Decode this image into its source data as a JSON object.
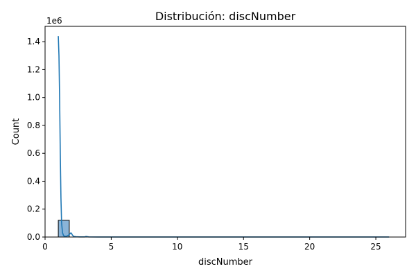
{
  "chart_data": {
    "type": "bar",
    "title": "Distribución: discNumber",
    "xlabel": "discNumber",
    "ylabel": "Count",
    "y_offset_text": "1e6",
    "xlim": [
      0,
      27.25
    ],
    "ylim": [
      0,
      1.51
    ],
    "x_ticks": [
      0,
      5,
      10,
      15,
      20,
      25
    ],
    "x_tick_labels": [
      "0",
      "5",
      "10",
      "15",
      "20",
      "25"
    ],
    "y_ticks": [
      0.0,
      0.2,
      0.4,
      0.6,
      0.8,
      1.0,
      1.2,
      1.4
    ],
    "y_tick_labels": [
      "0.0",
      "0.2",
      "0.4",
      "0.6",
      "0.8",
      "1.0",
      "1.2",
      "1.4"
    ],
    "bins": [
      {
        "x0": 1.0,
        "x1": 1.83,
        "count": 0.12
      }
    ],
    "kde": {
      "x": [
        1.0,
        1.05,
        1.1,
        1.15,
        1.2,
        1.25,
        1.32,
        1.4,
        1.5,
        1.62,
        1.75,
        1.88,
        1.95,
        2.0,
        2.05,
        2.12,
        2.2,
        2.35,
        2.6,
        3.0,
        3.1,
        3.3,
        4.0,
        6.0,
        10.0,
        15.0,
        20.0,
        26.0
      ],
      "y": [
        1.44,
        1.3,
        1.0,
        0.6,
        0.28,
        0.1,
        0.03,
        0.01,
        0.005,
        0.006,
        0.012,
        0.022,
        0.03,
        0.026,
        0.016,
        0.008,
        0.004,
        0.002,
        0.001,
        0.001,
        0.004,
        0.001,
        0.0005,
        0.0003,
        0.0002,
        0.0002,
        0.0002,
        0.0002
      ]
    },
    "colors": {
      "bar_fill": "#8ab4d8",
      "bar_edge": "#000000",
      "kde_line": "#1f77b4",
      "axes": "#000000"
    }
  }
}
